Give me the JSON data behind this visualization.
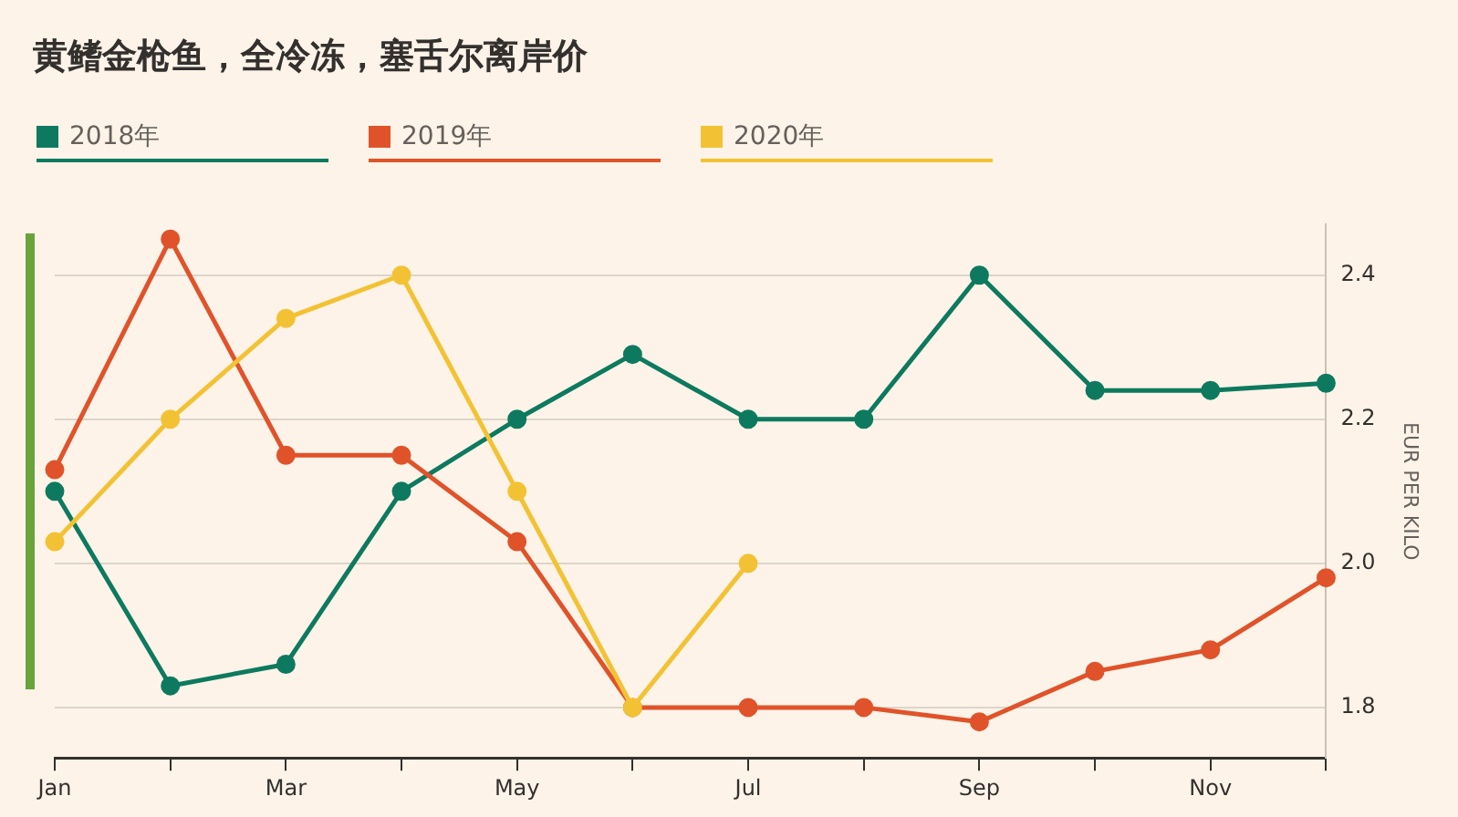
{
  "chart_data": {
    "type": "line",
    "title": "黄鳍金枪鱼，全冷冻，塞舌尔离岸价",
    "ylabel": "EUR PER KILO",
    "categories": [
      "Jan",
      null,
      "Mar",
      null,
      "May",
      null,
      "Jul",
      null,
      "Sep",
      null,
      "Nov",
      null
    ],
    "series": [
      {
        "name": "2018年",
        "color": "#0d7a5f",
        "values": [
          2.1,
          1.83,
          1.86,
          2.1,
          2.2,
          2.29,
          2.2,
          2.2,
          2.4,
          2.24,
          2.24,
          2.25
        ]
      },
      {
        "name": "2019年",
        "color": "#e0532a",
        "values": [
          2.13,
          2.45,
          2.15,
          2.15,
          2.03,
          1.8,
          1.8,
          1.8,
          1.78,
          1.85,
          1.88,
          1.98
        ]
      },
      {
        "name": "2020年",
        "color": "#f3c234",
        "values": [
          2.03,
          2.2,
          2.34,
          2.4,
          2.1,
          1.8,
          2.0,
          null,
          null,
          null,
          null,
          null
        ]
      }
    ],
    "ylim": [
      1.73,
      2.47
    ],
    "yticks": [
      {
        "value": 1.8,
        "label": "1.8"
      },
      {
        "value": 2.0,
        "label": "2.0"
      },
      {
        "value": 2.2,
        "label": "2.2"
      },
      {
        "value": 2.4,
        "label": "2.4"
      }
    ],
    "grid": "y",
    "legend": "top left",
    "marker": "circle",
    "line_style": "solid"
  }
}
